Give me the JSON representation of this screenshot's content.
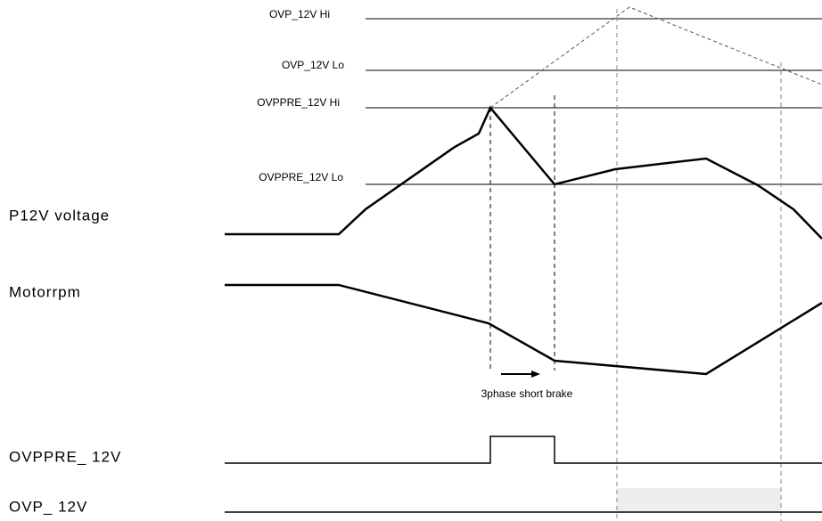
{
  "thresholds": [
    {
      "label": "OVP_12V Hi"
    },
    {
      "label": "OVP_12V Lo"
    },
    {
      "label": "OVPPRE_12V Hi"
    },
    {
      "label": "OVPPRE_12V Lo"
    }
  ],
  "signals": [
    {
      "label": "P12V voltage"
    },
    {
      "label": "Motorrpm"
    },
    {
      "label": "OVPPRE_ 12V"
    },
    {
      "label": "OVP_ 12V"
    }
  ],
  "annotation": "3phase short brake"
}
